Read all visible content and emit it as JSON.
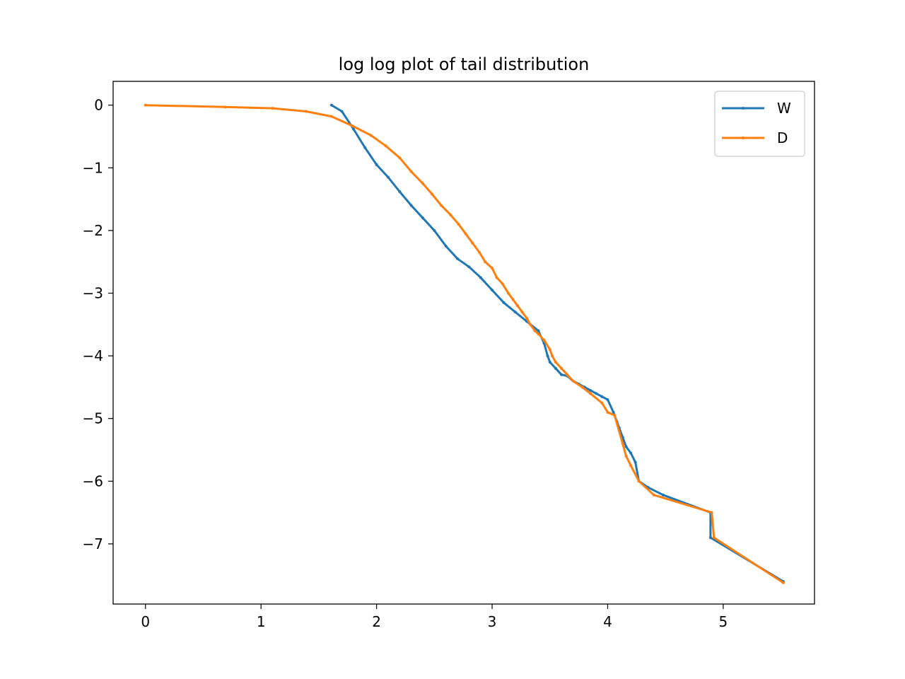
{
  "chart_data": {
    "type": "line",
    "title": "log log plot of tail distribution",
    "xlabel": "",
    "ylabel": "",
    "xlim": [
      -0.28,
      5.79
    ],
    "ylim": [
      -7.96,
      0.38
    ],
    "xticks": [
      0,
      1,
      2,
      3,
      4,
      5
    ],
    "xtick_labels": [
      "0",
      "1",
      "2",
      "3",
      "4",
      "5"
    ],
    "yticks": [
      0,
      -1,
      -2,
      -3,
      -4,
      -5,
      -6,
      -7
    ],
    "ytick_labels": [
      "0",
      "−1",
      "−2",
      "−3",
      "−4",
      "−5",
      "−6",
      "−7"
    ],
    "grid": false,
    "legend_position": "upper right",
    "series": [
      {
        "name": "W",
        "color": "#1f77b4",
        "x": [
          1.61,
          1.7,
          1.8,
          1.9,
          2.0,
          2.1,
          2.2,
          2.3,
          2.4,
          2.5,
          2.6,
          2.7,
          2.8,
          2.9,
          3.0,
          3.1,
          3.2,
          3.3,
          3.4,
          3.45,
          3.48,
          3.5,
          3.55,
          3.6,
          3.65,
          3.7,
          3.75,
          3.8,
          3.85,
          3.9,
          3.95,
          4.0,
          4.05,
          4.08,
          4.1,
          4.13,
          4.16,
          4.2,
          4.24,
          4.27,
          4.35,
          4.48,
          4.89,
          4.89,
          5.52
        ],
        "y": [
          0.0,
          -0.1,
          -0.38,
          -0.68,
          -0.95,
          -1.15,
          -1.38,
          -1.6,
          -1.8,
          -2.0,
          -2.25,
          -2.45,
          -2.58,
          -2.75,
          -2.95,
          -3.15,
          -3.3,
          -3.45,
          -3.6,
          -3.8,
          -4.0,
          -4.1,
          -4.2,
          -4.3,
          -4.32,
          -4.4,
          -4.45,
          -4.5,
          -4.55,
          -4.6,
          -4.65,
          -4.7,
          -4.9,
          -5.05,
          -5.15,
          -5.3,
          -5.45,
          -5.55,
          -5.7,
          -6.0,
          -6.1,
          -6.22,
          -6.5,
          -6.9,
          -7.6
        ]
      },
      {
        "name": "D",
        "color": "#ff7f0e",
        "x": [
          0.0,
          0.69,
          1.1,
          1.39,
          1.61,
          1.79,
          1.95,
          2.08,
          2.2,
          2.3,
          2.4,
          2.48,
          2.56,
          2.64,
          2.71,
          2.77,
          2.83,
          2.89,
          2.94,
          3.0,
          3.04,
          3.09,
          3.14,
          3.18,
          3.22,
          3.26,
          3.3,
          3.33,
          3.37,
          3.4,
          3.45,
          3.5,
          3.52,
          3.55,
          3.6,
          3.65,
          3.7,
          3.78,
          3.85,
          3.95,
          4.0,
          4.06,
          4.13,
          4.16,
          4.2,
          4.27,
          4.4,
          4.9,
          4.92,
          5.52
        ],
        "y": [
          0.0,
          -0.03,
          -0.05,
          -0.1,
          -0.18,
          -0.33,
          -0.48,
          -0.65,
          -0.84,
          -1.06,
          -1.25,
          -1.42,
          -1.6,
          -1.75,
          -1.9,
          -2.05,
          -2.2,
          -2.35,
          -2.5,
          -2.6,
          -2.75,
          -2.85,
          -3.0,
          -3.1,
          -3.2,
          -3.3,
          -3.4,
          -3.5,
          -3.6,
          -3.65,
          -3.75,
          -3.9,
          -4.0,
          -4.1,
          -4.2,
          -4.3,
          -4.4,
          -4.5,
          -4.6,
          -4.75,
          -4.9,
          -4.95,
          -5.4,
          -5.6,
          -5.75,
          -6.0,
          -6.22,
          -6.5,
          -6.9,
          -7.62
        ]
      }
    ]
  }
}
